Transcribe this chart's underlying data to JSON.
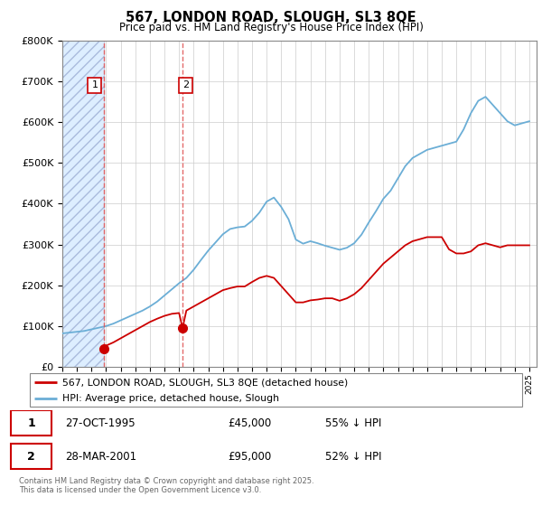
{
  "title": "567, LONDON ROAD, SLOUGH, SL3 8QE",
  "subtitle": "Price paid vs. HM Land Registry's House Price Index (HPI)",
  "footer": "Contains HM Land Registry data © Crown copyright and database right 2025.\nThis data is licensed under the Open Government Licence v3.0.",
  "legend_line1": "567, LONDON ROAD, SLOUGH, SL3 8QE (detached house)",
  "legend_line2": "HPI: Average price, detached house, Slough",
  "transactions": [
    {
      "label": "1",
      "date": "27-OCT-1995",
      "price": "£45,000",
      "pct": "55% ↓ HPI",
      "year": 1995.82,
      "value": 45000
    },
    {
      "label": "2",
      "date": "28-MAR-2001",
      "price": "£95,000",
      "pct": "52% ↓ HPI",
      "year": 2001.24,
      "value": 95000
    }
  ],
  "hpi_color": "#6baed6",
  "price_color": "#cc0000",
  "vline_color": "#e05050",
  "ylim": [
    0,
    800000
  ],
  "xlim_start": 1993.0,
  "xlim_end": 2025.5,
  "yticks": [
    0,
    100000,
    200000,
    300000,
    400000,
    500000,
    600000,
    700000,
    800000
  ],
  "hpi_x": [
    1993,
    1993.5,
    1994,
    1994.5,
    1995,
    1995.5,
    1996,
    1996.5,
    1997,
    1997.5,
    1998,
    1998.5,
    1999,
    1999.5,
    2000,
    2000.5,
    2001,
    2001.5,
    2002,
    2002.5,
    2003,
    2003.5,
    2004,
    2004.5,
    2005,
    2005.5,
    2006,
    2006.5,
    2007,
    2007.5,
    2008,
    2008.5,
    2009,
    2009.5,
    2010,
    2010.5,
    2011,
    2011.5,
    2012,
    2012.5,
    2013,
    2013.5,
    2014,
    2014.5,
    2015,
    2015.5,
    2016,
    2016.5,
    2017,
    2017.5,
    2018,
    2018.5,
    2019,
    2019.5,
    2020,
    2020.5,
    2021,
    2021.5,
    2022,
    2022.5,
    2023,
    2023.5,
    2024,
    2024.5,
    2025
  ],
  "hpi_y": [
    82000,
    84000,
    86000,
    88000,
    92000,
    96000,
    100000,
    106000,
    114000,
    122000,
    130000,
    138000,
    148000,
    160000,
    175000,
    190000,
    205000,
    218000,
    238000,
    262000,
    285000,
    305000,
    325000,
    338000,
    342000,
    344000,
    358000,
    378000,
    405000,
    415000,
    392000,
    362000,
    312000,
    302000,
    308000,
    303000,
    297000,
    292000,
    287000,
    292000,
    303000,
    324000,
    354000,
    382000,
    412000,
    432000,
    462000,
    492000,
    512000,
    522000,
    532000,
    537000,
    542000,
    547000,
    552000,
    582000,
    622000,
    652000,
    662000,
    642000,
    622000,
    602000,
    592000,
    597000,
    602000
  ],
  "price_x": [
    1995.82,
    1996,
    1996.5,
    1997,
    1997.5,
    1998,
    1998.5,
    1999,
    1999.5,
    2000,
    2000.5,
    2001,
    2001.24,
    2001.5,
    2002,
    2002.5,
    2003,
    2003.5,
    2004,
    2004.5,
    2005,
    2005.5,
    2006,
    2006.5,
    2007,
    2007.5,
    2008,
    2008.5,
    2009,
    2009.5,
    2010,
    2010.5,
    2011,
    2011.5,
    2012,
    2012.5,
    2013,
    2013.5,
    2014,
    2014.5,
    2015,
    2015.5,
    2016,
    2016.5,
    2017,
    2017.5,
    2018,
    2018.5,
    2019,
    2019.5,
    2020,
    2020.5,
    2021,
    2021.5,
    2022,
    2022.5,
    2023,
    2023.5,
    2024,
    2024.5,
    2025
  ],
  "price_y": [
    45000,
    52000,
    60000,
    70000,
    80000,
    90000,
    100000,
    110000,
    118000,
    125000,
    130000,
    132000,
    95000,
    138000,
    148000,
    158000,
    168000,
    178000,
    188000,
    193000,
    197000,
    197000,
    208000,
    218000,
    223000,
    218000,
    198000,
    178000,
    158000,
    158000,
    163000,
    165000,
    168000,
    168000,
    162000,
    168000,
    178000,
    193000,
    213000,
    233000,
    253000,
    268000,
    283000,
    298000,
    308000,
    313000,
    318000,
    318000,
    318000,
    288000,
    278000,
    278000,
    283000,
    298000,
    303000,
    298000,
    293000,
    298000,
    298000,
    298000,
    298000
  ]
}
